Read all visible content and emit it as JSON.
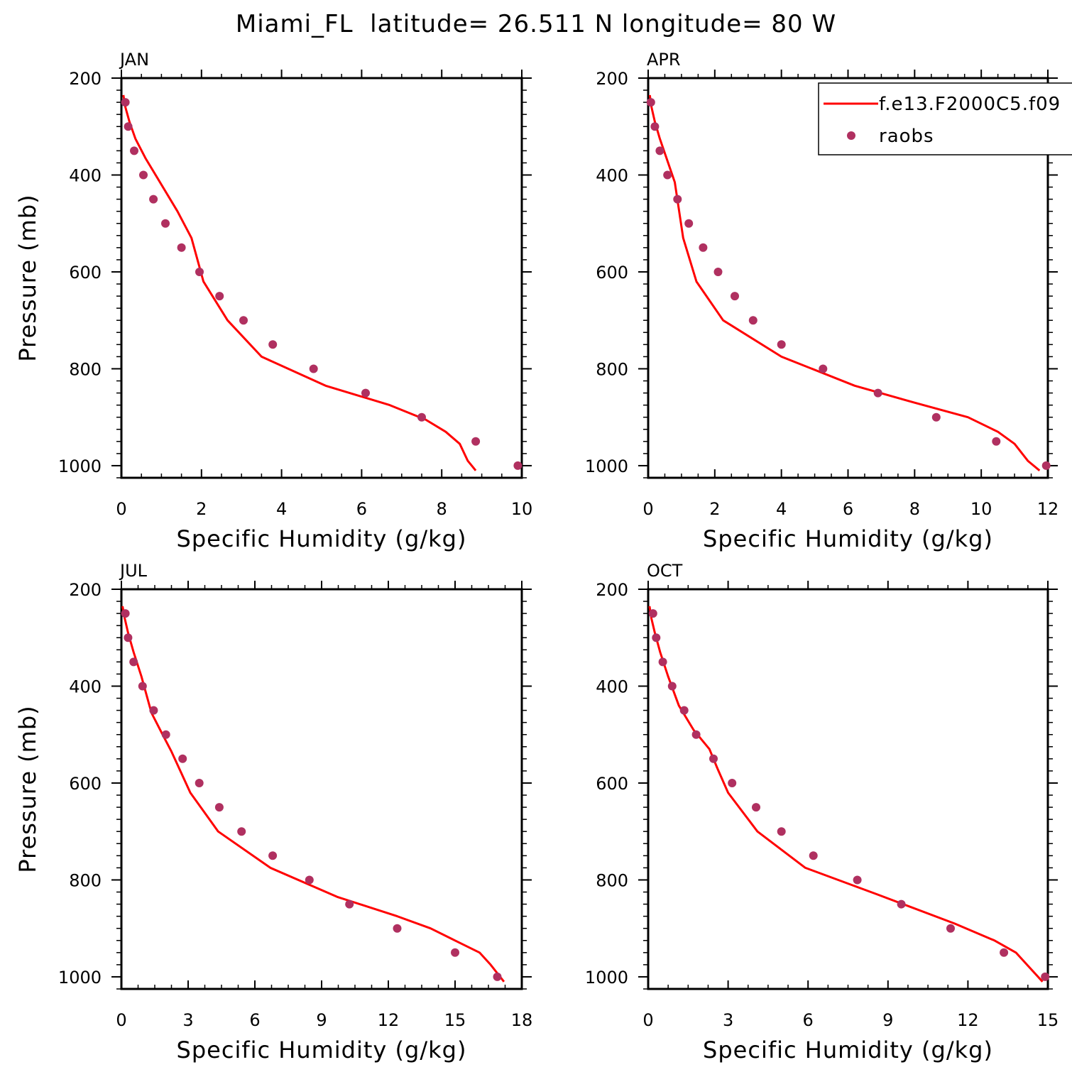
{
  "title": "Miami_FL  latitude= 26.511 N longitude= 80 W",
  "colors": {
    "model": "#ff0000",
    "obs": "#b03060"
  },
  "legend": {
    "model_label": "f.e13.F2000C5.f09",
    "obs_label": "raobs"
  },
  "chart_data": [
    {
      "type": "line",
      "panel": "JAN",
      "xlabel": "Specific Humidity (g/kg)",
      "ylabel": "Pressure (mb)",
      "xlim": [
        0,
        10
      ],
      "xticks": [
        0,
        2,
        4,
        6,
        8,
        10
      ],
      "ylim": [
        1025,
        200
      ],
      "yticks": [
        200,
        400,
        600,
        800,
        1000
      ],
      "series": [
        {
          "name": "f.e13.F2000C5.f09",
          "x": [
            0.05,
            0.1,
            0.2,
            0.35,
            0.6,
            1.0,
            1.4,
            1.75,
            2.05,
            2.65,
            3.5,
            5.1,
            6.7,
            7.6,
            8.1,
            8.45,
            8.65,
            8.85
          ],
          "y": [
            235,
            260,
            290,
            325,
            365,
            420,
            475,
            530,
            620,
            700,
            775,
            835,
            875,
            905,
            930,
            955,
            990,
            1010
          ]
        },
        {
          "name": "raobs",
          "x": [
            0.1,
            0.17,
            0.32,
            0.55,
            0.8,
            1.1,
            1.5,
            1.95,
            2.45,
            3.05,
            3.78,
            4.8,
            6.1,
            7.5,
            8.85,
            9.9
          ],
          "y": [
            250,
            300,
            350,
            400,
            450,
            500,
            550,
            600,
            650,
            700,
            750,
            800,
            850,
            900,
            950,
            1000
          ]
        }
      ]
    },
    {
      "type": "line",
      "panel": "APR",
      "xlabel": "Specific Humidity (g/kg)",
      "ylabel": "",
      "xlim": [
        0,
        12
      ],
      "xticks": [
        0,
        2,
        4,
        6,
        8,
        10,
        12
      ],
      "ylim": [
        1025,
        200
      ],
      "yticks": [
        200,
        400,
        600,
        800,
        1000
      ],
      "series": [
        {
          "name": "f.e13.F2000C5.f09",
          "x": [
            0.05,
            0.1,
            0.2,
            0.35,
            0.55,
            0.8,
            1.05,
            1.45,
            2.25,
            4.0,
            6.2,
            8.0,
            9.6,
            10.5,
            11.0,
            11.4,
            11.75
          ],
          "y": [
            235,
            260,
            290,
            325,
            365,
            415,
            530,
            620,
            700,
            775,
            835,
            870,
            900,
            930,
            955,
            990,
            1010
          ]
        },
        {
          "name": "raobs",
          "x": [
            0.08,
            0.2,
            0.35,
            0.58,
            0.88,
            1.22,
            1.65,
            2.1,
            2.6,
            3.15,
            4.0,
            5.25,
            6.9,
            8.65,
            10.45,
            11.95
          ],
          "y": [
            250,
            300,
            350,
            400,
            450,
            500,
            550,
            600,
            650,
            700,
            750,
            800,
            850,
            900,
            950,
            1000
          ]
        }
      ]
    },
    {
      "type": "line",
      "panel": "JUL",
      "xlabel": "Specific Humidity (g/kg)",
      "ylabel": "Pressure (mb)",
      "xlim": [
        0,
        18
      ],
      "xticks": [
        0,
        3,
        6,
        9,
        12,
        15,
        18
      ],
      "ylim": [
        1025,
        200
      ],
      "yticks": [
        200,
        400,
        600,
        800,
        1000
      ],
      "series": [
        {
          "name": "f.e13.F2000C5.f09",
          "x": [
            0.05,
            0.15,
            0.3,
            0.55,
            0.9,
            1.35,
            1.85,
            2.25,
            3.1,
            4.35,
            6.7,
            9.7,
            12.4,
            13.9,
            15.0,
            16.1,
            16.6,
            17.2
          ],
          "y": [
            235,
            260,
            290,
            330,
            380,
            455,
            500,
            535,
            620,
            700,
            775,
            835,
            875,
            900,
            925,
            950,
            975,
            1010
          ]
        },
        {
          "name": "raobs",
          "x": [
            0.18,
            0.3,
            0.55,
            0.95,
            1.45,
            2.0,
            2.75,
            3.5,
            4.4,
            5.4,
            6.8,
            8.45,
            10.25,
            12.4,
            15.0,
            16.9
          ],
          "y": [
            250,
            300,
            350,
            400,
            450,
            500,
            550,
            600,
            650,
            700,
            750,
            800,
            850,
            900,
            950,
            1000
          ]
        }
      ]
    },
    {
      "type": "line",
      "panel": "OCT",
      "xlabel": "Specific Humidity (g/kg)",
      "ylabel": "",
      "xlim": [
        0,
        15
      ],
      "xticks": [
        0,
        3,
        6,
        9,
        12,
        15
      ],
      "ylim": [
        1025,
        200
      ],
      "yticks": [
        200,
        400,
        600,
        800,
        1000
      ],
      "series": [
        {
          "name": "f.e13.F2000C5.f09",
          "x": [
            0.05,
            0.12,
            0.25,
            0.45,
            0.75,
            1.15,
            1.7,
            2.3,
            2.6,
            3.0,
            4.1,
            5.9,
            8.6,
            11.5,
            13.0,
            13.8,
            14.3,
            14.8
          ],
          "y": [
            235,
            260,
            290,
            330,
            380,
            440,
            490,
            530,
            570,
            620,
            700,
            775,
            830,
            890,
            925,
            950,
            980,
            1010
          ]
        },
        {
          "name": "raobs",
          "x": [
            0.18,
            0.3,
            0.55,
            0.9,
            1.35,
            1.8,
            2.45,
            3.15,
            4.05,
            5.0,
            6.2,
            7.85,
            9.5,
            11.35,
            13.35,
            14.9
          ],
          "y": [
            250,
            300,
            350,
            400,
            450,
            500,
            550,
            600,
            650,
            700,
            750,
            800,
            850,
            900,
            950,
            1000
          ]
        }
      ]
    }
  ]
}
